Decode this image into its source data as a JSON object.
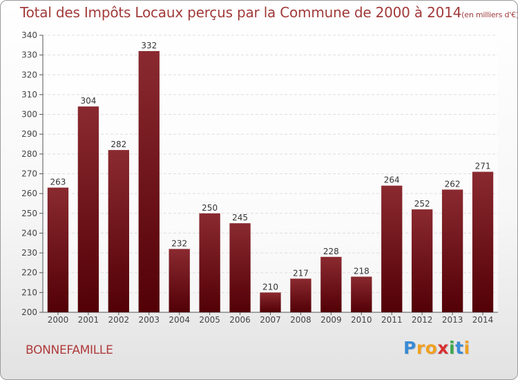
{
  "title": "Total des Impôts Locaux perçus par la Commune de 2000 à 2014",
  "title_unit": "(en milliers d'€)",
  "commune": "BONNEFAMILLE",
  "logo": {
    "letters": [
      "P",
      "r",
      "o",
      "x",
      "i",
      "t",
      "i"
    ],
    "colors": [
      "#3a8ad6",
      "#f0a020",
      "#f0a020",
      "#d83030",
      "#3aa84a",
      "#3a8ad6",
      "#f0a020"
    ]
  },
  "chart_data": {
    "type": "bar",
    "categories": [
      "2000",
      "2001",
      "2002",
      "2003",
      "2004",
      "2005",
      "2006",
      "2007",
      "2008",
      "2009",
      "2010",
      "2011",
      "2012",
      "2013",
      "2014"
    ],
    "values": [
      263,
      304,
      282,
      332,
      232,
      250,
      245,
      210,
      217,
      228,
      218,
      264,
      252,
      262,
      271
    ],
    "ylim": [
      200,
      340
    ],
    "yticks": [
      200,
      210,
      220,
      230,
      240,
      250,
      260,
      270,
      280,
      290,
      300,
      310,
      320,
      330,
      340
    ],
    "grid": true,
    "bar_color": "#7a1a1f",
    "xlabel": "",
    "ylabel": ""
  }
}
